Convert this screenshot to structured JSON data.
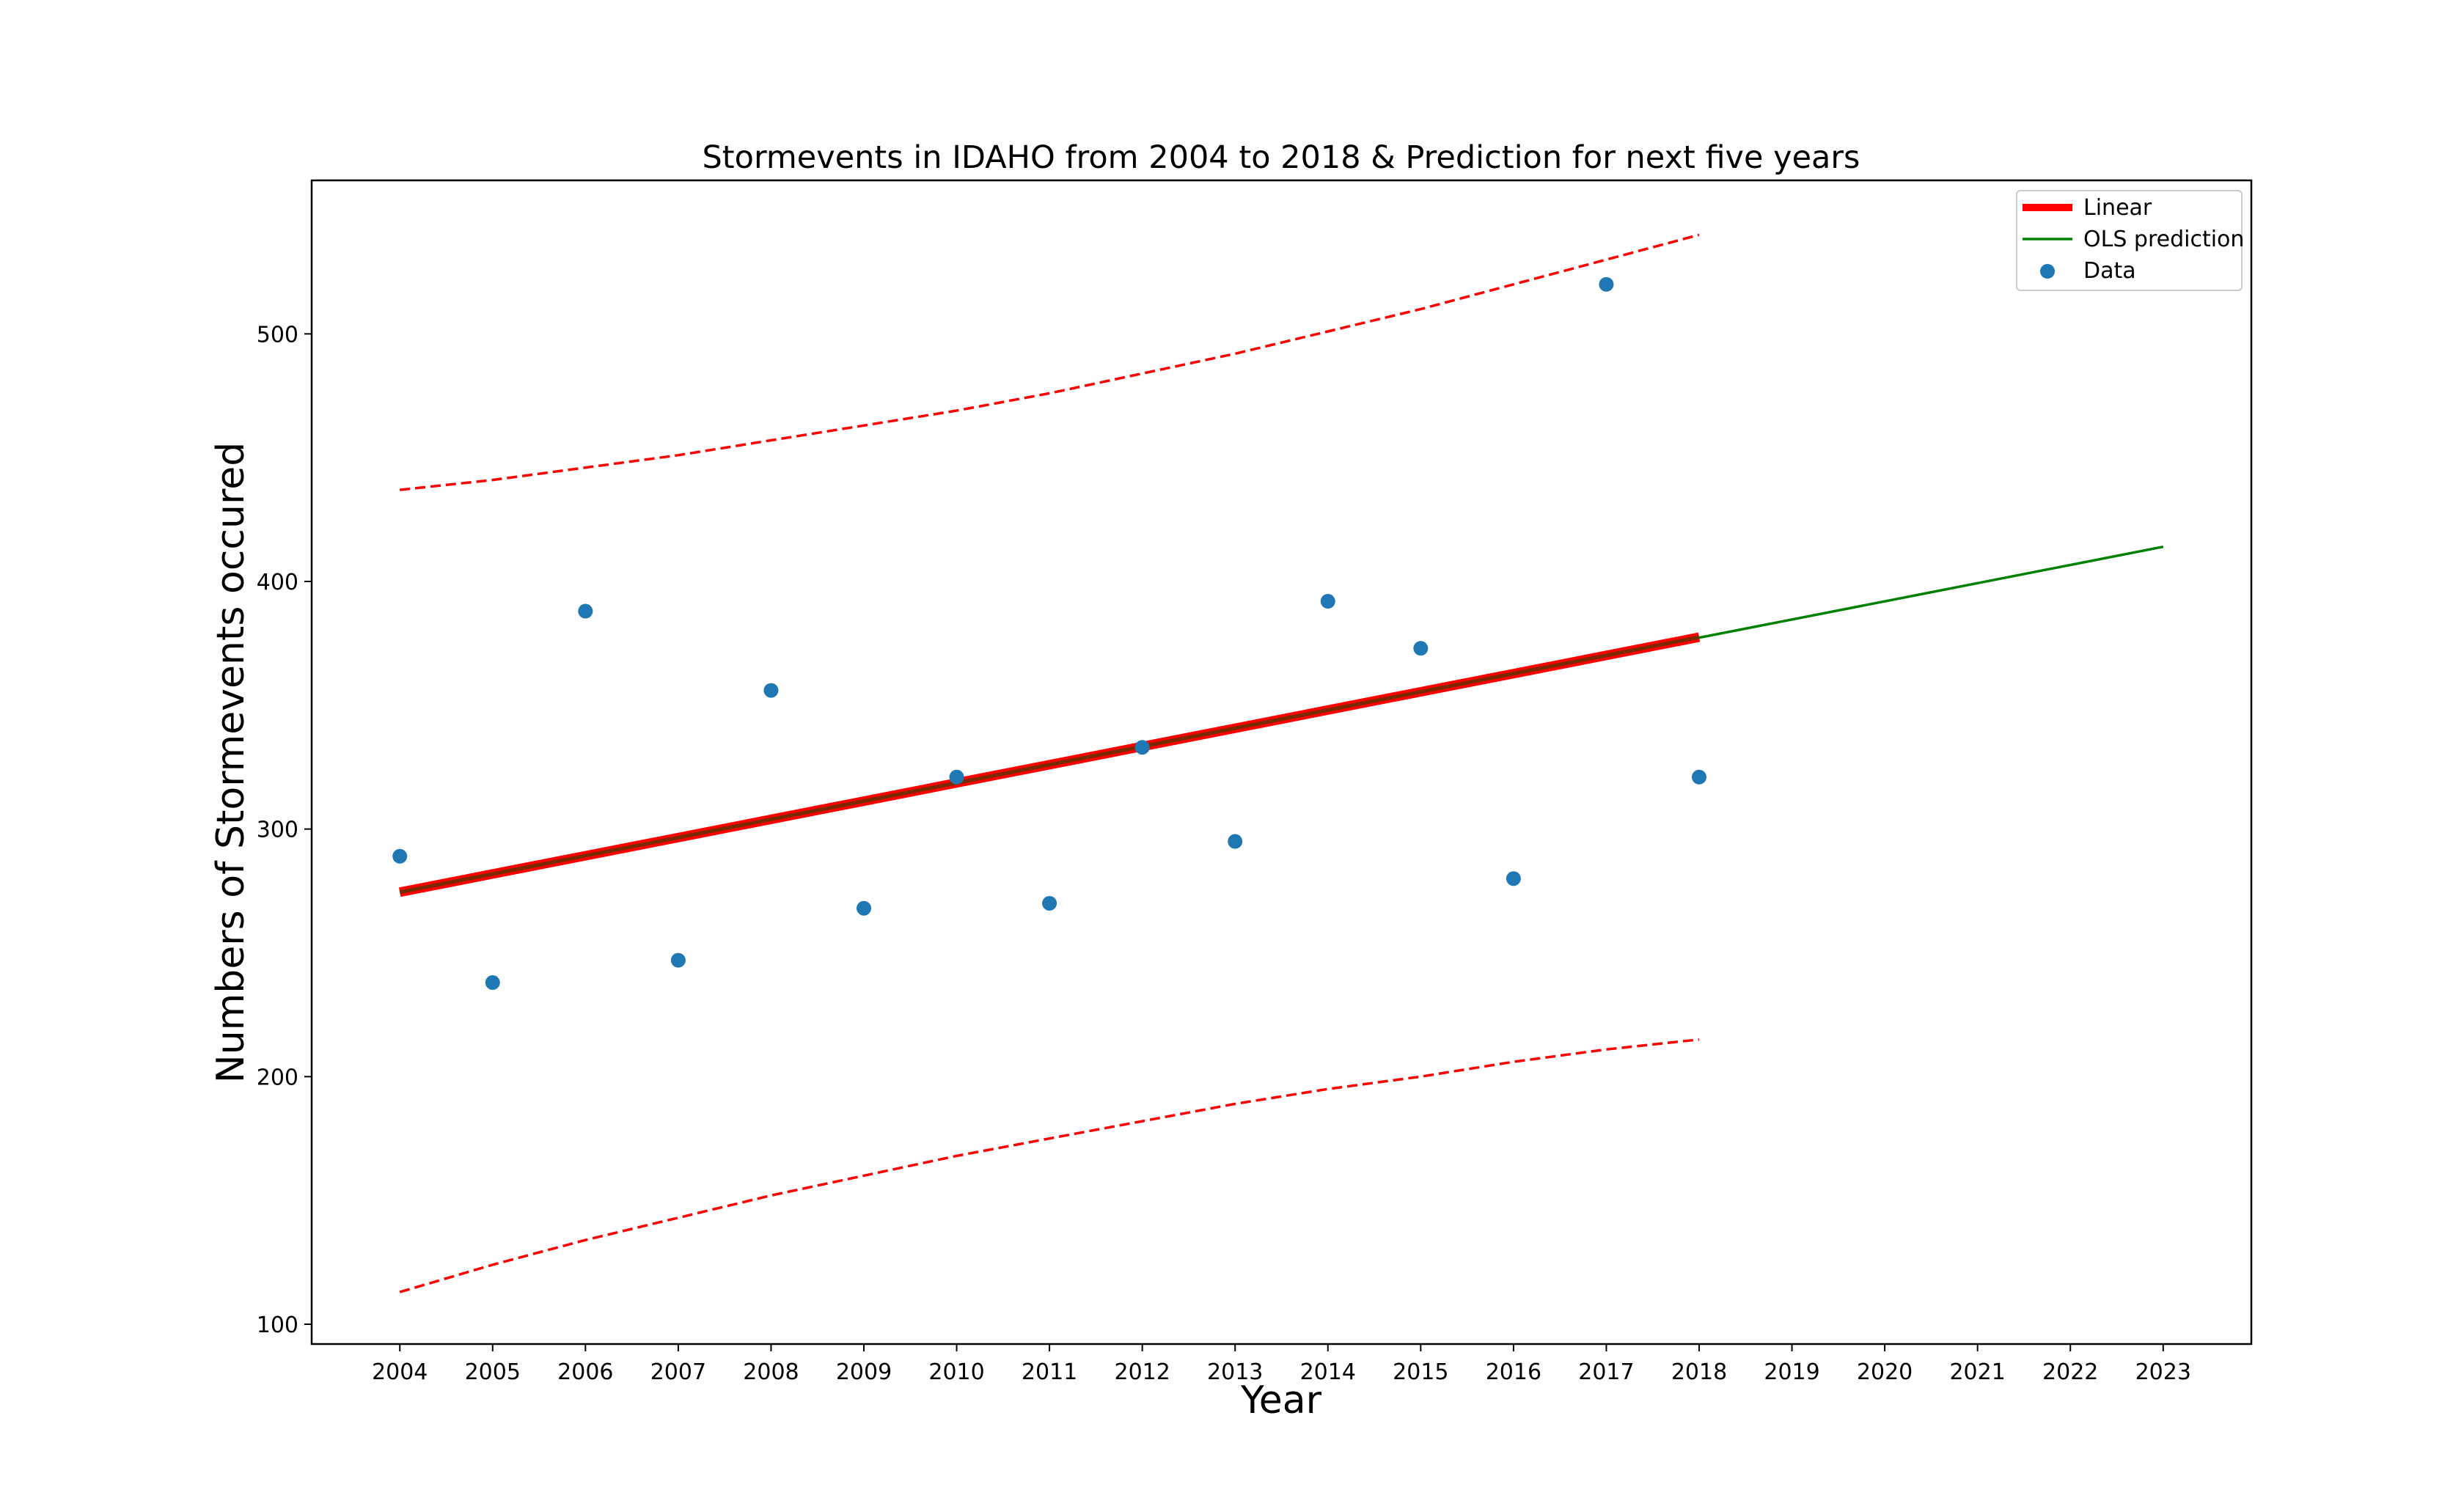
{
  "chart_data": {
    "type": "scatter",
    "title": "Stormevents in IDAHO from 2004 to 2018 & Prediction for next five years",
    "xlabel": "Year",
    "ylabel": "Numbers of Stormevents occured",
    "xlim": [
      2003.05,
      2023.95
    ],
    "ylim": [
      92,
      562
    ],
    "x_ticks": [
      "2004",
      "2005",
      "2006",
      "2007",
      "2008",
      "2009",
      "2010",
      "2011",
      "2012",
      "2013",
      "2014",
      "2015",
      "2016",
      "2017",
      "2018",
      "2019",
      "2020",
      "2021",
      "2022",
      "2023"
    ],
    "y_ticks": [
      "100",
      "200",
      "300",
      "400",
      "500"
    ],
    "grid": false,
    "legend_placement": "top-right",
    "series": [
      {
        "name": "Data",
        "kind": "scatter",
        "color": "#1f77b4",
        "x": [
          2004,
          2005,
          2006,
          2007,
          2008,
          2009,
          2010,
          2011,
          2012,
          2013,
          2014,
          2015,
          2016,
          2017,
          2018
        ],
        "y": [
          289,
          238,
          388,
          247,
          356,
          268,
          321,
          270,
          333,
          295,
          392,
          373,
          280,
          520,
          321
        ]
      },
      {
        "name": "Linear",
        "kind": "line",
        "color": "#ff0000",
        "x": [
          2004,
          2018
        ],
        "y": [
          274.5,
          377.5
        ]
      },
      {
        "name": "OLS prediction",
        "kind": "line",
        "color": "#008000",
        "x": [
          2004,
          2023
        ],
        "y": [
          274.5,
          414
        ]
      },
      {
        "kind": "dashed",
        "color": "#ff0000",
        "x": [
          2004,
          2005,
          2006,
          2007,
          2008,
          2009,
          2010,
          2011,
          2012,
          2013,
          2014,
          2015,
          2016,
          2017,
          2018
        ],
        "y": [
          437,
          441,
          446,
          451,
          457,
          463,
          469,
          476,
          484,
          492,
          501,
          510,
          520,
          530,
          540
        ]
      },
      {
        "kind": "dashed",
        "color": "#ff0000",
        "x": [
          2004,
          2005,
          2006,
          2007,
          2008,
          2009,
          2010,
          2011,
          2012,
          2013,
          2014,
          2015,
          2016,
          2017,
          2018
        ],
        "y": [
          113,
          124,
          134,
          143,
          152,
          160,
          168,
          175,
          182,
          189,
          195,
          200,
          206,
          211,
          215
        ]
      }
    ],
    "legend": [
      {
        "label": "Linear",
        "kind": "thick-line",
        "color": "#ff0000"
      },
      {
        "label": "OLS prediction",
        "kind": "line",
        "color": "#008000"
      },
      {
        "label": "Data",
        "kind": "marker",
        "color": "#1f77b4"
      }
    ]
  }
}
